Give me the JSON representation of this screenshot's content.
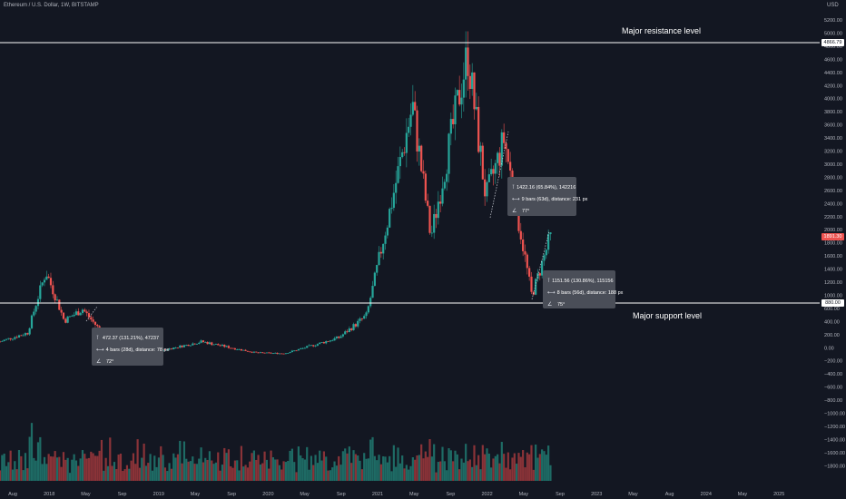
{
  "header": {
    "symbol_title": "Ethereum / U.S. Dollar, 1W, BITSTAMP",
    "currency": "USD"
  },
  "colors": {
    "background": "#131722",
    "bull": "#26a69a",
    "bear": "#ef5350",
    "volume_bull": "#1e6b65",
    "volume_bear": "#8a3338",
    "level_line": "#ffffff",
    "tooltip_bg": "#4a4e58"
  },
  "levels": {
    "resistance": {
      "label": "Major resistance level",
      "price": 4866.79,
      "tag": "4866.79"
    },
    "support": {
      "label": "Major support level",
      "price": 880,
      "tag": "880.00"
    },
    "last_price_tag": "1891.30"
  },
  "measurements": [
    {
      "price_line": "472.37 (131.21%), 47237",
      "bars_line": "4 bars (28d), distance: 78 px",
      "angle_line": "72°"
    },
    {
      "price_line": "1422.16 (65.84%), 142216",
      "bars_line": "9 bars (63d), distance: 231 px",
      "angle_line": "77°"
    },
    {
      "price_line": "1151.56 (130.86%), 115156",
      "bars_line": "8 bars (56d), distance: 188 px",
      "angle_line": "75°"
    }
  ],
  "chart_data": {
    "type": "candlestick",
    "title": "Ethereum / U.S. Dollar, 1W, BITSTAMP",
    "y_unit": "USD",
    "ylim_price": [
      -1900,
      5400
    ],
    "y_ticks": [
      "5200.00",
      "5000.00",
      "4800.00",
      "4600.00",
      "4400.00",
      "4200.00",
      "4000.00",
      "3800.00",
      "3600.00",
      "3400.00",
      "3200.00",
      "3000.00",
      "2800.00",
      "2600.00",
      "2400.00",
      "2200.00",
      "2000.00",
      "1800.00",
      "1600.00",
      "1400.00",
      "1200.00",
      "1000.00",
      "600.00",
      "400.00",
      "200.00",
      "0.00",
      "−200.00",
      "−400.00",
      "−600.00",
      "−800.00",
      "−1000.00",
      "−1200.00",
      "−1400.00",
      "−1600.00",
      "−1800.00"
    ],
    "x_ticks": [
      "Aug",
      "2018",
      "May",
      "Sep",
      "2019",
      "May",
      "Sep",
      "2020",
      "May",
      "Sep",
      "2021",
      "May",
      "Sep",
      "2022",
      "May",
      "Sep",
      "2023",
      "May",
      "Aug",
      "2024",
      "May",
      "2025"
    ],
    "price_anchors": [
      [
        "2017-08",
        300
      ],
      [
        "2017-11",
        430
      ],
      [
        "2018-01",
        1380
      ],
      [
        "2018-03",
        620
      ],
      [
        "2018-05",
        790
      ],
      [
        "2018-08",
        300
      ],
      [
        "2018-12",
        120
      ],
      [
        "2019-06",
        300
      ],
      [
        "2019-12",
        130
      ],
      [
        "2020-03",
        120
      ],
      [
        "2020-09",
        360
      ],
      [
        "2020-12",
        700
      ],
      [
        "2021-05",
        3900
      ],
      [
        "2021-07",
        1900
      ],
      [
        "2021-11",
        4700
      ],
      [
        "2022-01",
        2500
      ],
      [
        "2022-03",
        3400
      ],
      [
        "2022-06",
        1000
      ],
      [
        "2022-08",
        1891
      ]
    ],
    "grid": false,
    "legend": "none"
  }
}
